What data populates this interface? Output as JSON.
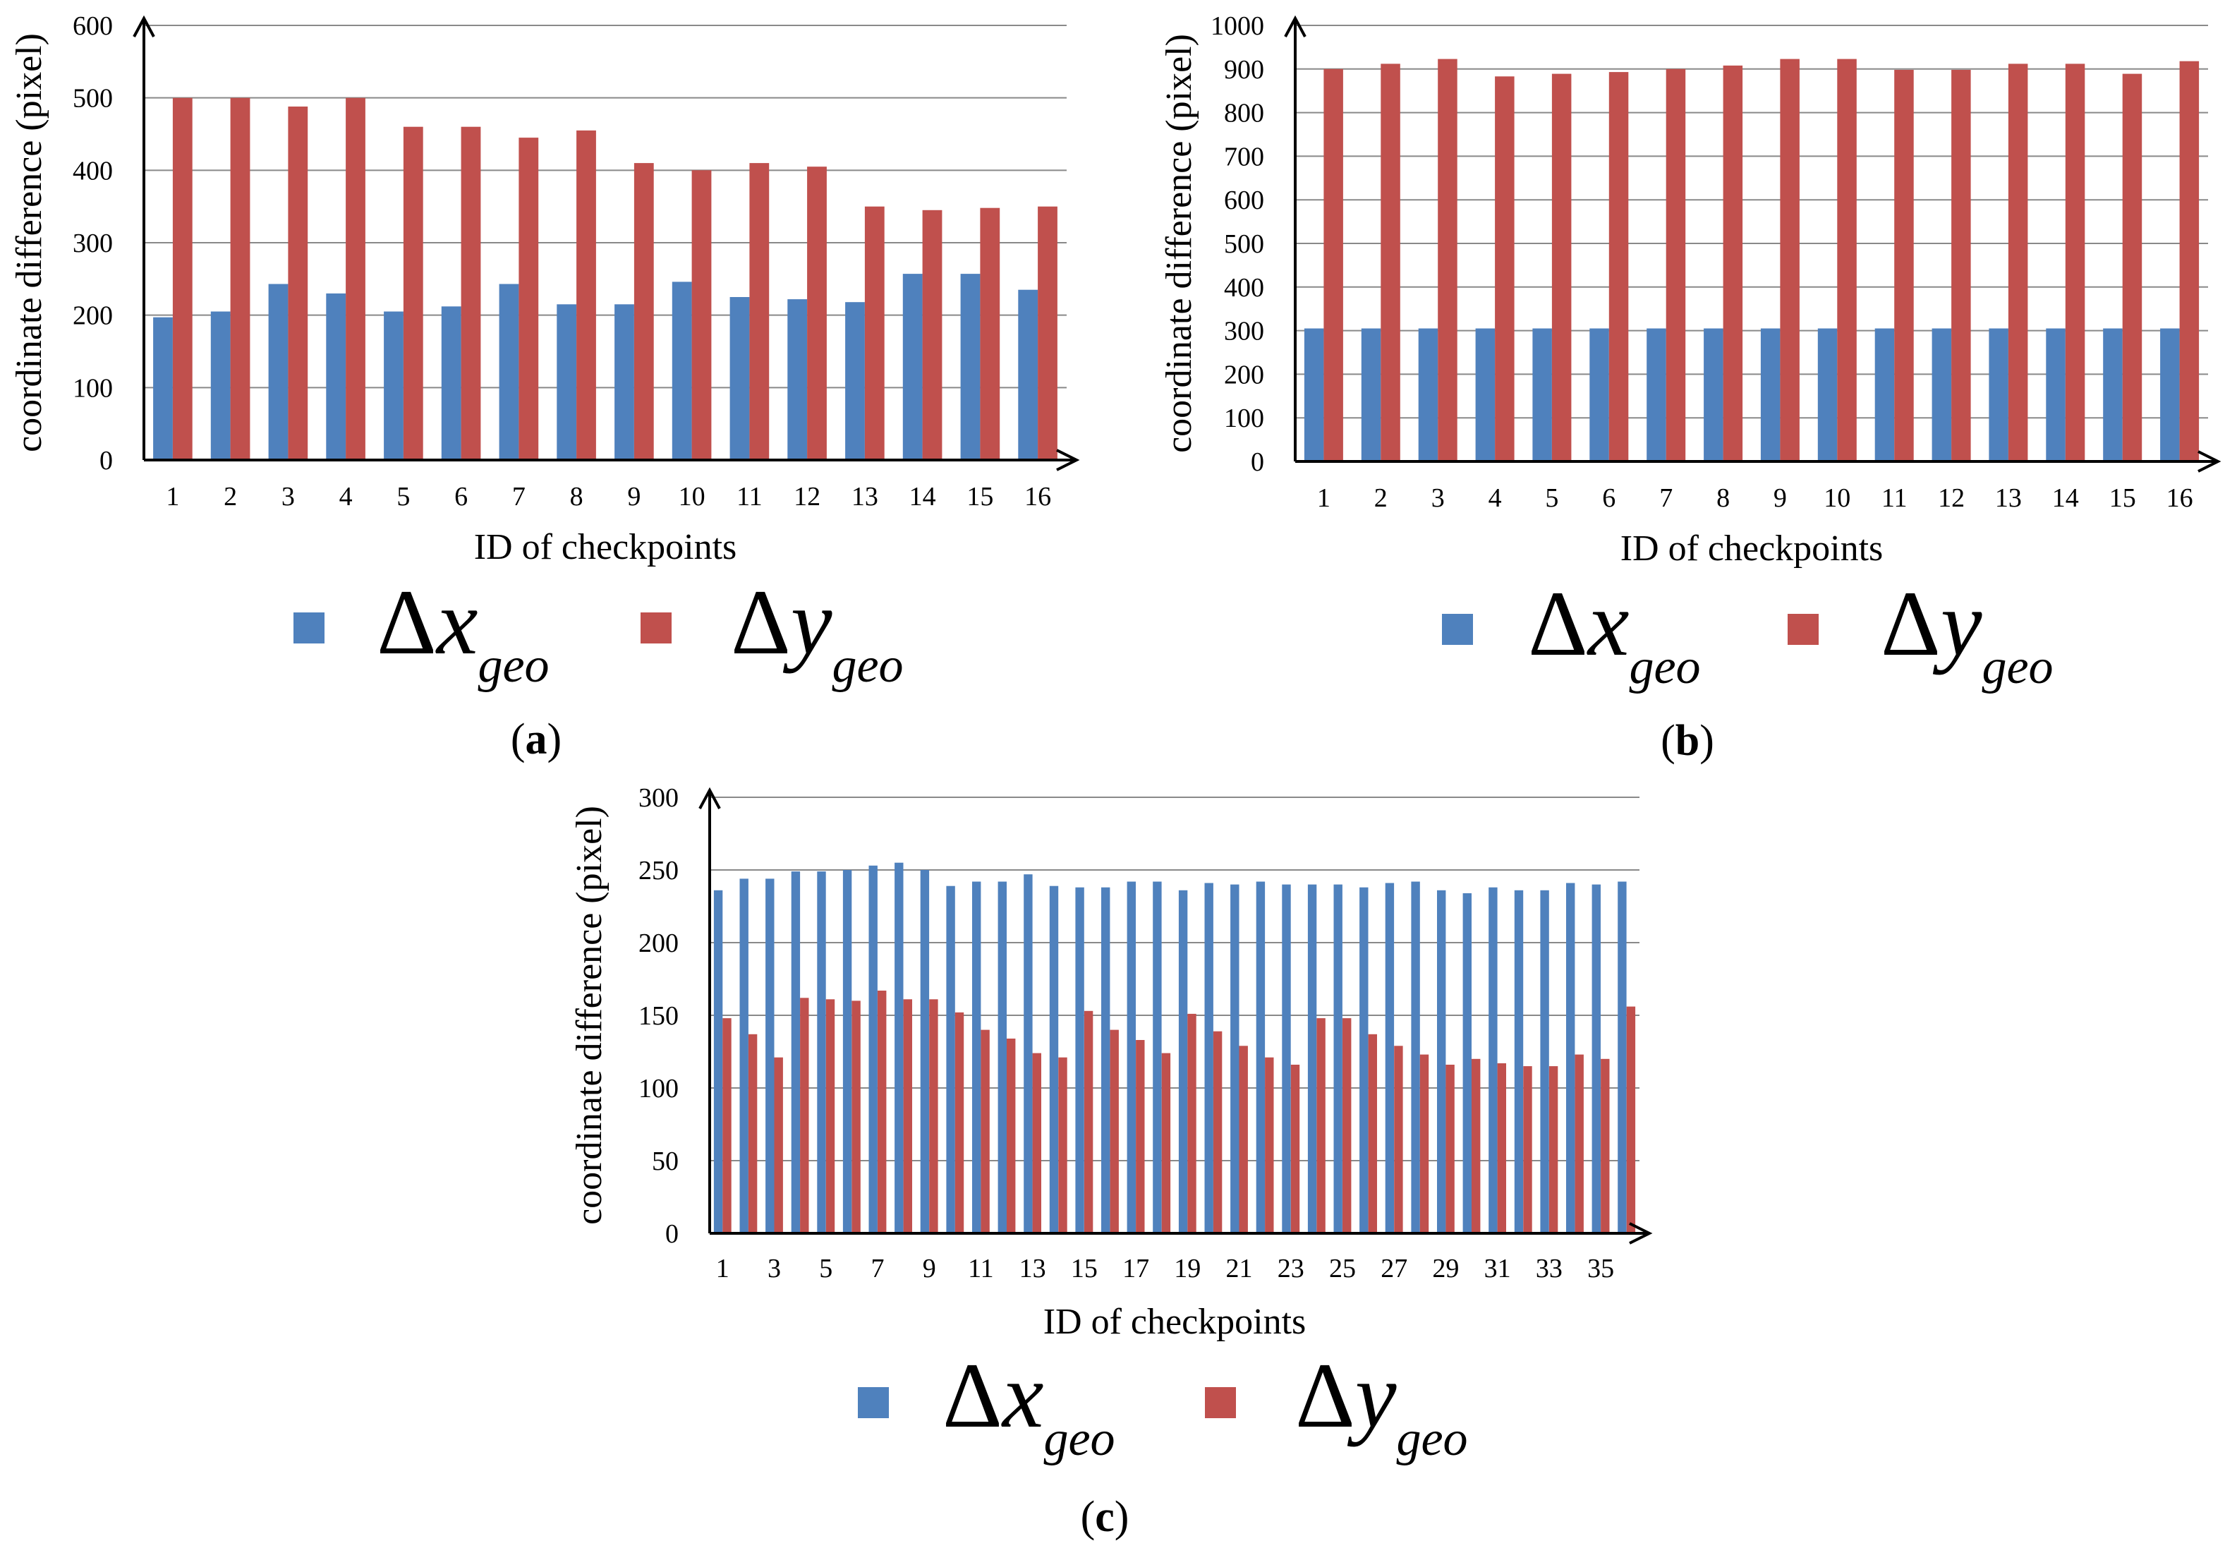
{
  "colors": {
    "dx": "#4f81bd",
    "dy": "#c0504d",
    "grid": "#898989",
    "axis": "#000000"
  },
  "legend": {
    "dx": {
      "delta": "Δ",
      "var": "x",
      "sub": "geo"
    },
    "dy": {
      "delta": "Δ",
      "var": "y",
      "sub": "geo"
    }
  },
  "chart_data": [
    {
      "id": "a",
      "panel_label": "a",
      "type": "bar",
      "ylabel": "coordinate difference (pixel)",
      "xlabel": "ID of checkpoints",
      "ylim": [
        0,
        600
      ],
      "yticks": [
        0,
        100,
        200,
        300,
        400,
        500,
        600
      ],
      "grid": true,
      "legend_position": "bottom",
      "categories": [
        "1",
        "2",
        "3",
        "4",
        "5",
        "6",
        "7",
        "8",
        "9",
        "10",
        "11",
        "12",
        "13",
        "14",
        "15",
        "16"
      ],
      "category_labels": [
        "1",
        "2",
        "3",
        "4",
        "5",
        "6",
        "7",
        "8",
        "9",
        "10",
        "11",
        "12",
        "13",
        "14",
        "15",
        "16"
      ],
      "series": [
        {
          "name": "Δx_geo",
          "key": "dx",
          "values": [
            197,
            205,
            243,
            230,
            205,
            212,
            243,
            215,
            215,
            246,
            225,
            222,
            218,
            257,
            257,
            235
          ]
        },
        {
          "name": "Δy_geo",
          "key": "dy",
          "values": [
            500,
            500,
            488,
            500,
            460,
            460,
            445,
            455,
            410,
            400,
            410,
            405,
            350,
            345,
            348,
            350
          ]
        }
      ]
    },
    {
      "id": "b",
      "panel_label": "b",
      "type": "bar",
      "ylabel": "coordinate difference (pixel)",
      "xlabel": "ID of checkpoints",
      "ylim": [
        0,
        1000
      ],
      "yticks": [
        0,
        100,
        200,
        300,
        400,
        500,
        600,
        700,
        800,
        900,
        1000
      ],
      "grid": true,
      "legend_position": "bottom",
      "categories": [
        "1",
        "2",
        "3",
        "4",
        "5",
        "6",
        "7",
        "8",
        "9",
        "10",
        "11",
        "12",
        "13",
        "14",
        "15",
        "16"
      ],
      "category_labels": [
        "1",
        "2",
        "3",
        "4",
        "5",
        "6",
        "7",
        "8",
        "9",
        "10",
        "11",
        "12",
        "13",
        "14",
        "15",
        "16"
      ],
      "series": [
        {
          "name": "Δx_geo",
          "key": "dx",
          "values": [
            305,
            305,
            305,
            305,
            305,
            305,
            305,
            305,
            305,
            305,
            305,
            305,
            305,
            305,
            305,
            305
          ]
        },
        {
          "name": "Δy_geo",
          "key": "dy",
          "values": [
            900,
            912,
            923,
            883,
            889,
            893,
            900,
            908,
            923,
            923,
            898,
            898,
            912,
            912,
            889,
            918
          ]
        }
      ]
    },
    {
      "id": "c",
      "panel_label": "c",
      "type": "bar",
      "ylabel": "coordinate difference (pixel)",
      "xlabel": "ID of checkpoints",
      "ylim": [
        0,
        300
      ],
      "yticks": [
        0,
        50,
        100,
        150,
        200,
        250,
        300
      ],
      "grid": true,
      "legend_position": "bottom",
      "categories": [
        "1",
        "2",
        "3",
        "4",
        "5",
        "6",
        "7",
        "8",
        "9",
        "10",
        "11",
        "12",
        "13",
        "14",
        "15",
        "16",
        "17",
        "18",
        "19",
        "20",
        "21",
        "22",
        "23",
        "24",
        "25",
        "26",
        "27",
        "28",
        "29",
        "30",
        "31",
        "32",
        "33",
        "34",
        "35",
        "36"
      ],
      "category_labels": [
        "1",
        "",
        "3",
        "",
        "5",
        "",
        "7",
        "",
        "9",
        "",
        "11",
        "",
        "13",
        "",
        "15",
        "",
        "17",
        "",
        "19",
        "",
        "21",
        "",
        "23",
        "",
        "25",
        "",
        "27",
        "",
        "29",
        "",
        "31",
        "",
        "33",
        "",
        "35",
        ""
      ],
      "series": [
        {
          "name": "Δx_geo",
          "key": "dx",
          "values": [
            236,
            244,
            244,
            249,
            249,
            250,
            253,
            255,
            250,
            239,
            242,
            242,
            247,
            239,
            238,
            238,
            242,
            242,
            236,
            241,
            240,
            242,
            240,
            240,
            240,
            238,
            241,
            242,
            236,
            234,
            238,
            236,
            236,
            241,
            240,
            242
          ]
        },
        {
          "name": "Δy_geo",
          "key": "dy",
          "values": [
            148,
            137,
            121,
            162,
            161,
            160,
            167,
            161,
            161,
            152,
            140,
            134,
            124,
            121,
            153,
            140,
            133,
            124,
            151,
            139,
            129,
            121,
            116,
            148,
            148,
            137,
            129,
            123,
            116,
            120,
            117,
            115,
            115,
            123,
            120,
            156
          ]
        }
      ]
    }
  ]
}
